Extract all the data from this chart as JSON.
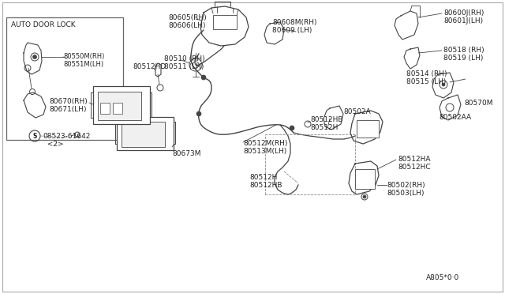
{
  "bg_color": "#ffffff",
  "lc": "#444444",
  "tc": "#222222",
  "fig_width": 6.4,
  "fig_height": 3.72,
  "dpi": 100,
  "labels": {
    "inset_title": "AUTO DOOR LOCK",
    "l1a": "80550M(RH)",
    "l1b": "80551M(LH)",
    "l2a": "80605(RH)",
    "l2b": "80606(LH)",
    "l3a": "80608M(RH)",
    "l3b": "80609 (LH)",
    "l4a": "80600J(RH)",
    "l4b": "80601J(LH)",
    "l5a": "80510 (RH)",
    "l5b": "80511 (LH)",
    "l6a": "80518 (RH)",
    "l6b": "80519 (LH)",
    "l7a": "80514 (RH)",
    "l7b": "80515 (LH)",
    "l8": "80512HD",
    "l9": "80502A",
    "l10a": "80512HB",
    "l10b": "80512H",
    "l11": "80570M",
    "l12": "80502AA",
    "l13a": "80512M(RH)",
    "l13b": "80513M(LH)",
    "l14a": "80512H",
    "l14b": "80512HB",
    "l15a": "80512HA",
    "l15b": "80512HC",
    "l16a": "80502(RH)",
    "l16b": "80503(LH)",
    "l17a": "80670(RH)",
    "l17b": "80671(LH)",
    "l18a": "08523-61642",
    "l18b": "  <2>",
    "l19": "80673M",
    "l20": "A805*0·0"
  }
}
